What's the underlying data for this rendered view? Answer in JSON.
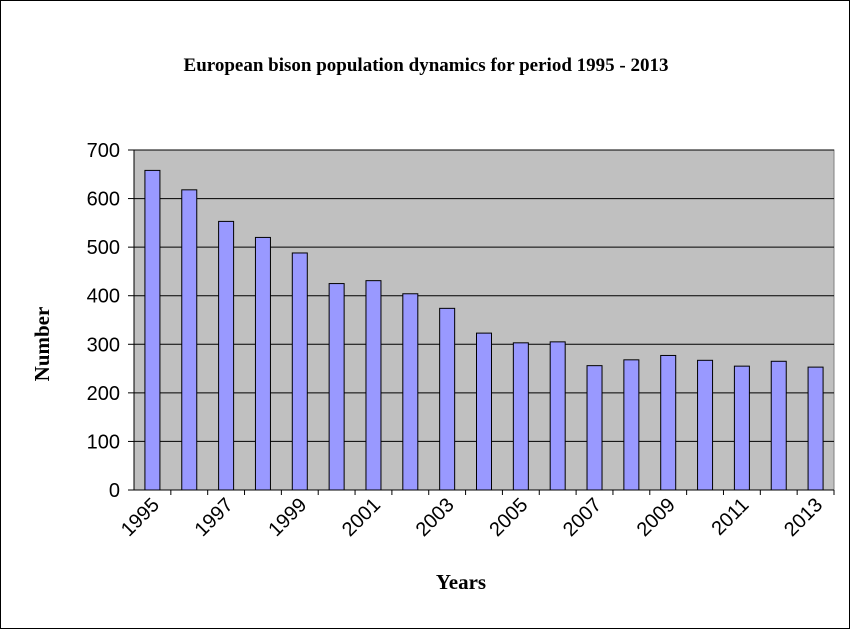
{
  "chart_data": {
    "type": "bar",
    "title": "European bison population dynamics for period 1995 - 2013",
    "xlabel": "Years",
    "ylabel": "Number",
    "ylim": [
      0,
      700
    ],
    "yticks": [
      0,
      100,
      200,
      300,
      400,
      500,
      600,
      700
    ],
    "grid": true,
    "categories": [
      "1995",
      "1996",
      "1997",
      "1998",
      "1999",
      "2000",
      "2001",
      "2002",
      "2003",
      "2004",
      "2005",
      "2006",
      "2007",
      "2008",
      "2009",
      "2010",
      "2011",
      "2012",
      "2013"
    ],
    "xtick_labels": [
      "1995",
      "1997",
      "1999",
      "2001",
      "2003",
      "2005",
      "2007",
      "2009",
      "2011",
      "2013"
    ],
    "values": [
      658,
      618,
      553,
      520,
      488,
      425,
      431,
      404,
      374,
      323,
      303,
      305,
      256,
      268,
      277,
      267,
      255,
      265,
      253
    ],
    "colors": {
      "bar": "#9999ff",
      "plot_background": "#c0c0c0"
    }
  }
}
